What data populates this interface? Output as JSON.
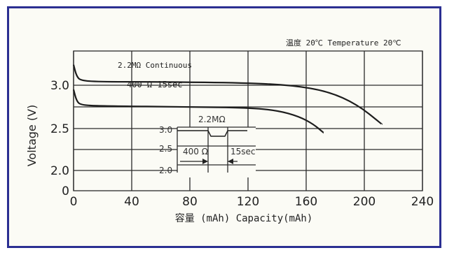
{
  "chart_data": {
    "type": "line",
    "title": "",
    "temperature_note": "温度 20℃ Temperature 20℃",
    "xlabel": "容量 (mAh) Capacity(mAh)",
    "ylabel": "Voltage (V)",
    "xlim": [
      0,
      240
    ],
    "ylim": [
      0,
      3.3
    ],
    "x_ticks": [
      "0",
      "40",
      "80",
      "120",
      "160",
      "200",
      "240"
    ],
    "y_ticks": [
      "0",
      "2.0",
      "2.5",
      "3.0"
    ],
    "grid": true,
    "series": [
      {
        "name": "2.2MΩ Continuous",
        "points": [
          [
            0,
            3.18
          ],
          [
            2,
            3.08
          ],
          [
            5,
            3.04
          ],
          [
            20,
            3.03
          ],
          [
            60,
            3.03
          ],
          [
            120,
            3.02
          ],
          [
            150,
            3.0
          ],
          [
            175,
            2.93
          ],
          [
            195,
            2.78
          ],
          [
            212,
            2.55
          ]
        ]
      },
      {
        "name": "400 Ω 15sec",
        "points": [
          [
            0,
            2.95
          ],
          [
            2,
            2.82
          ],
          [
            5,
            2.77
          ],
          [
            20,
            2.76
          ],
          [
            80,
            2.75
          ],
          [
            120,
            2.74
          ],
          [
            140,
            2.71
          ],
          [
            155,
            2.64
          ],
          [
            165,
            2.55
          ],
          [
            172,
            2.45
          ]
        ]
      }
    ],
    "inset": {
      "y_ticks": [
        "3.0",
        "2.5",
        "2.0"
      ],
      "label_top": "2.2MΩ",
      "label_left": "400 Ω",
      "label_right": "15sec"
    }
  }
}
